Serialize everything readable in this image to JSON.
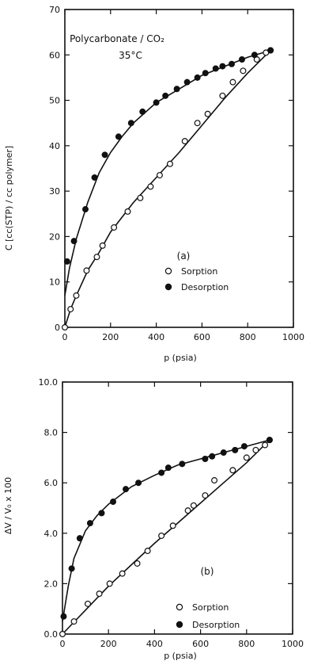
{
  "chart_data": [
    {
      "type": "scatter",
      "panel_label": "(a)",
      "title": "Polycarbonate / CO₂",
      "subtitle": "35°C",
      "xlabel": "p (psia)",
      "ylabel": "C [cc(STP) / cc polymer]",
      "xlim": [
        0,
        1000
      ],
      "ylim": [
        0,
        70
      ],
      "x_ticks": [
        0,
        200,
        400,
        600,
        800,
        1000
      ],
      "y_ticks": [
        0,
        10,
        20,
        30,
        40,
        50,
        60,
        70
      ],
      "legend_position": "lower-right",
      "series": [
        {
          "name": "Sorption",
          "marker": "open-circle",
          "points": [
            [
              0,
              0
            ],
            [
              25,
              4
            ],
            [
              50,
              7
            ],
            [
              95,
              12.5
            ],
            [
              140,
              15.5
            ],
            [
              165,
              18
            ],
            [
              215,
              22
            ],
            [
              275,
              25.5
            ],
            [
              330,
              28.5
            ],
            [
              375,
              31
            ],
            [
              415,
              33.5
            ],
            [
              460,
              36
            ],
            [
              525,
              41
            ],
            [
              580,
              45
            ],
            [
              625,
              47
            ],
            [
              690,
              51
            ],
            [
              735,
              54
            ],
            [
              780,
              56.5
            ],
            [
              840,
              59
            ],
            [
              880,
              60.5
            ],
            [
              900,
              61
            ]
          ],
          "fit_curve": [
            [
              0,
              0
            ],
            [
              25,
              4
            ],
            [
              50,
              7
            ],
            [
              100,
              12.5
            ],
            [
              150,
              16.5
            ],
            [
              200,
              21
            ],
            [
              300,
              27.5
            ],
            [
              400,
              33
            ],
            [
              500,
              38.5
            ],
            [
              600,
              44.5
            ],
            [
              700,
              50.5
            ],
            [
              800,
              56
            ],
            [
              900,
              61
            ]
          ]
        },
        {
          "name": "Desorption",
          "marker": "filled-circle",
          "points": [
            [
              10,
              14.5
            ],
            [
              40,
              19
            ],
            [
              90,
              26
            ],
            [
              130,
              33
            ],
            [
              175,
              38
            ],
            [
              235,
              42
            ],
            [
              290,
              45
            ],
            [
              340,
              47.5
            ],
            [
              400,
              49.5
            ],
            [
              440,
              51
            ],
            [
              490,
              52.5
            ],
            [
              535,
              54
            ],
            [
              580,
              55
            ],
            [
              615,
              56
            ],
            [
              660,
              57
            ],
            [
              690,
              57.5
            ],
            [
              730,
              58
            ],
            [
              775,
              59
            ],
            [
              830,
              60
            ],
            [
              900,
              61
            ]
          ],
          "fit_curve": [
            [
              0,
              7
            ],
            [
              20,
              13
            ],
            [
              50,
              19.5
            ],
            [
              100,
              27.5
            ],
            [
              150,
              34
            ],
            [
              200,
              38.5
            ],
            [
              250,
              42
            ],
            [
              300,
              45
            ],
            [
              400,
              49.5
            ],
            [
              500,
              52.5
            ],
            [
              600,
              55.5
            ],
            [
              700,
              57.5
            ],
            [
              800,
              59.5
            ],
            [
              900,
              61
            ]
          ]
        }
      ]
    },
    {
      "type": "scatter",
      "panel_label": "(b)",
      "xlabel": "p (psia)",
      "ylabel": "ΔV / V₀  x 100",
      "xlim": [
        0,
        1000
      ],
      "ylim": [
        0,
        10
      ],
      "x_ticks": [
        0,
        200,
        400,
        600,
        800,
        1000
      ],
      "y_ticks": [
        "0.0",
        "2.0",
        "4.0",
        "6.0",
        "8.0",
        "10.0"
      ],
      "legend_position": "lower-right",
      "series": [
        {
          "name": "Sorption",
          "marker": "open-circle",
          "points": [
            [
              0,
              0
            ],
            [
              50,
              0.5
            ],
            [
              110,
              1.2
            ],
            [
              160,
              1.6
            ],
            [
              205,
              2.0
            ],
            [
              260,
              2.4
            ],
            [
              325,
              2.8
            ],
            [
              370,
              3.3
            ],
            [
              430,
              3.9
            ],
            [
              480,
              4.3
            ],
            [
              545,
              4.9
            ],
            [
              570,
              5.1
            ],
            [
              620,
              5.5
            ],
            [
              660,
              6.1
            ],
            [
              740,
              6.5
            ],
            [
              800,
              7.0
            ],
            [
              840,
              7.3
            ],
            [
              880,
              7.5
            ],
            [
              900,
              7.7
            ]
          ],
          "fit_curve": [
            [
              0,
              0
            ],
            [
              100,
              0.95
            ],
            [
              200,
              1.9
            ],
            [
              300,
              2.75
            ],
            [
              400,
              3.6
            ],
            [
              500,
              4.4
            ],
            [
              600,
              5.2
            ],
            [
              700,
              6.0
            ],
            [
              800,
              6.8
            ],
            [
              900,
              7.7
            ]
          ]
        },
        {
          "name": "Desorption",
          "marker": "filled-circle",
          "points": [
            [
              5,
              0.7
            ],
            [
              40,
              2.6
            ],
            [
              75,
              3.8
            ],
            [
              120,
              4.4
            ],
            [
              170,
              4.8
            ],
            [
              220,
              5.25
            ],
            [
              275,
              5.75
            ],
            [
              330,
              6.0
            ],
            [
              430,
              6.4
            ],
            [
              460,
              6.6
            ],
            [
              520,
              6.75
            ],
            [
              620,
              6.95
            ],
            [
              650,
              7.05
            ],
            [
              700,
              7.2
            ],
            [
              750,
              7.3
            ],
            [
              790,
              7.45
            ],
            [
              900,
              7.7
            ]
          ],
          "fit_curve": [
            [
              0,
              0.5
            ],
            [
              25,
              1.9
            ],
            [
              50,
              3.0
            ],
            [
              100,
              4.1
            ],
            [
              150,
              4.7
            ],
            [
              200,
              5.15
            ],
            [
              300,
              5.85
            ],
            [
              400,
              6.3
            ],
            [
              500,
              6.7
            ],
            [
              600,
              6.95
            ],
            [
              700,
              7.2
            ],
            [
              800,
              7.45
            ],
            [
              900,
              7.7
            ]
          ]
        }
      ]
    }
  ]
}
